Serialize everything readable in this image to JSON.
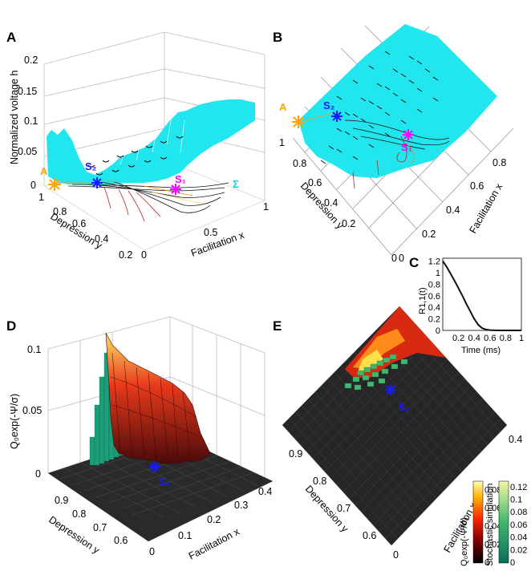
{
  "colors": {
    "surface": "#22e6ee",
    "a_marker": "#ffa500",
    "s2_marker": "#1a1aff",
    "s1_marker": "#ff00ff",
    "traj_black": "#111111",
    "traj_red": "#b22222",
    "stoch": "#1e9e78",
    "dark_floor": "#2a2a2a"
  },
  "chart_data": [
    {
      "panel": "A",
      "type": "surface3d",
      "title": "",
      "zlabel": "Normalized voltage h",
      "xlabel": "Facilitation x",
      "ylabel": "Depression y",
      "zticks": [
        "0",
        "0.05",
        "0.1",
        "0.15",
        "0.2"
      ],
      "xticks": [
        "0",
        "0.5",
        "1"
      ],
      "yticks": [
        "1",
        "0.8",
        "0.6",
        "0.4",
        "0.2"
      ],
      "zlim": [
        0,
        0.2
      ],
      "xlim": [
        0,
        1
      ],
      "ylim": [
        0.2,
        1
      ],
      "markers": [
        {
          "label": "A",
          "x": 0.0,
          "y": 1.0,
          "z": 0.0
        },
        {
          "label": "S₂",
          "x": 0.12,
          "y": 0.62,
          "z": 0.04
        },
        {
          "label": "S₁",
          "x": 0.55,
          "y": 0.38,
          "z": 0.02
        }
      ],
      "surface_label": "Σ",
      "grid": true
    },
    {
      "panel": "B",
      "type": "surface3d-top",
      "xlabel": "Facilitation x",
      "ylabel": "Depression y",
      "xticks": [
        "0",
        "0.2",
        "0.4",
        "0.6",
        "0.8"
      ],
      "yticks": [
        "1",
        "0.8",
        "0.6",
        "0.4",
        "0.2",
        "0"
      ],
      "markers": [
        {
          "label": "A"
        },
        {
          "label": "S₂"
        },
        {
          "label": "S₁"
        }
      ]
    },
    {
      "panel": "C",
      "type": "line",
      "xlabel": "Time (ms)",
      "ylabel": "R1,1(t)",
      "xticks": [
        "0.2",
        "0.4",
        "0.6",
        "0.8",
        "1"
      ],
      "yticks": [
        "0",
        "0.2",
        "0.4",
        "0.6",
        "0.8",
        "1",
        "1.2"
      ],
      "xlim": [
        0,
        1
      ],
      "ylim": [
        0,
        1.25
      ],
      "series": [
        {
          "x": [
            0,
            0.05,
            0.1,
            0.15,
            0.2,
            0.25,
            0.3,
            0.35,
            0.4,
            0.45,
            0.5,
            0.55,
            0.6,
            0.7,
            0.8,
            0.9,
            1.0
          ],
          "values": [
            1.2,
            1.1,
            0.98,
            0.86,
            0.73,
            0.6,
            0.46,
            0.33,
            0.2,
            0.1,
            0.04,
            0.015,
            0.005,
            0.0,
            0.0,
            0.0,
            0.0
          ]
        }
      ],
      "grid": false
    },
    {
      "panel": "D",
      "type": "surface3d",
      "zlabel": "Q₀exp(-Ψ/σ)",
      "xlabel": "Facilitation x",
      "ylabel": "Depression y",
      "zticks": [
        "0",
        "0.05",
        "0.1"
      ],
      "xticks": [
        "0",
        "0.1",
        "0.2",
        "0.3",
        "0.4"
      ],
      "yticks": [
        "0.9",
        "0.8",
        "0.7",
        "0.6"
      ],
      "zlim": [
        0,
        0.1
      ],
      "xlim": [
        0,
        0.4
      ],
      "ylim": [
        0.55,
        0.95
      ],
      "markers": [
        {
          "label": "S₂"
        }
      ],
      "grid": true
    },
    {
      "panel": "E",
      "type": "heatmap-top",
      "xlabel": "Facilitation x",
      "ylabel": "Depression y",
      "xticks": [
        "0",
        "0.4"
      ],
      "yticks": [
        "0.9",
        "0.8",
        "0.7",
        "0.6"
      ],
      "markers": [
        {
          "label": "S₂"
        }
      ],
      "colorbar1": {
        "label": "Q₀exp(-Ψ/σ)",
        "ticks": [
          "0",
          "0.02",
          "0.04",
          "0.06",
          "0.08"
        ]
      },
      "colorbar2": {
        "label": "Stochastic simulation",
        "ticks": [
          "0",
          "0.02",
          "0.04",
          "0.06",
          "0.08",
          "0.1",
          "0.12"
        ]
      }
    }
  ]
}
